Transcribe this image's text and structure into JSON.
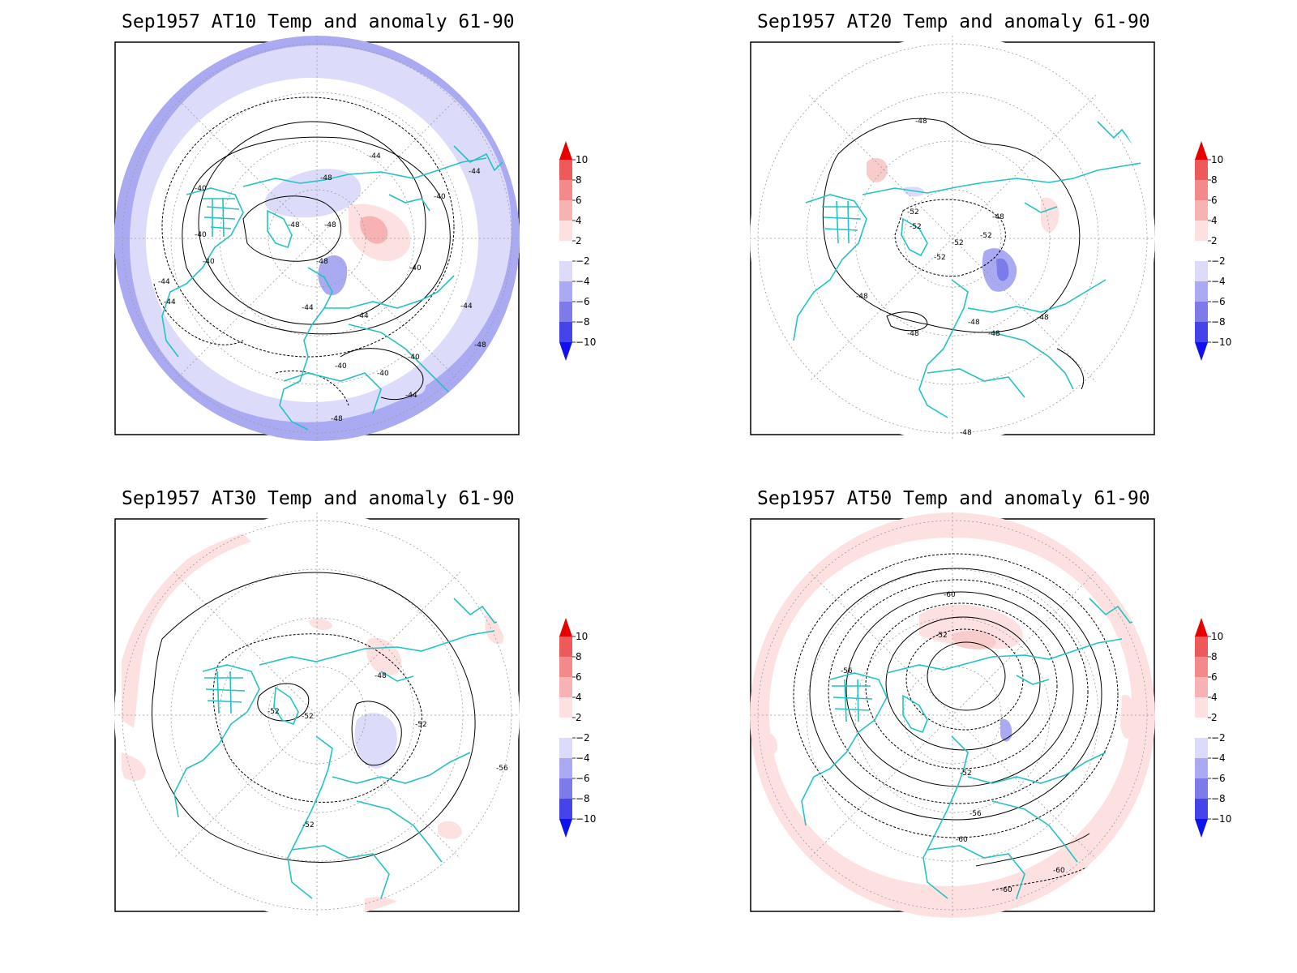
{
  "colors": {
    "coast": "#22c3c3",
    "contour": "#000000",
    "grid": "#9a9a9a",
    "anom_pos2": "#fde1e1",
    "anom_pos4": "#f7b3b3",
    "anom_pos6": "#f38a8a",
    "anom_pos8": "#ee5a5a",
    "anom_pos10": "#e60000",
    "anom_neg2": "#dcdcfa",
    "anom_neg4": "#aaaaf2",
    "anom_neg6": "#7b7bea",
    "anom_neg8": "#4444e8",
    "anom_neg10": "#1111ee"
  },
  "colorbar": {
    "labels": [
      "10",
      "8",
      "6",
      "4",
      "2",
      "−2",
      "−4",
      "−6",
      "−8",
      "−10"
    ]
  },
  "panels": [
    {
      "title": "Sep1957 AT10 Temp and anomaly 61-90",
      "contour_labels": [
        "-40",
        "-44",
        "-48",
        "-40",
        "-44",
        "-48",
        "-40",
        "-44",
        "-40",
        "-40",
        "-44",
        "-48",
        "-48",
        "-44",
        "-40",
        "-40",
        "-44",
        "-48",
        "-44",
        "-48",
        "-40",
        "-44"
      ]
    },
    {
      "title": "Sep1957 AT20 Temp and anomaly 61-90",
      "contour_labels": [
        "-48",
        "-52",
        "-52",
        "-52",
        "-52",
        "-48",
        "-48",
        "-48",
        "-48",
        "-48",
        "-52",
        "-48",
        "-48"
      ]
    },
    {
      "title": "Sep1957 AT30 Temp and anomaly 61-90",
      "contour_labels": [
        "-48",
        "-52",
        "-52",
        "-52",
        "-52",
        "-56"
      ]
    },
    {
      "title": "Sep1957 AT50 Temp and anomaly 61-90",
      "contour_labels": [
        "-60",
        "-52",
        "-56",
        "-52",
        "-56",
        "-60",
        "-60",
        "-60"
      ]
    }
  ]
}
